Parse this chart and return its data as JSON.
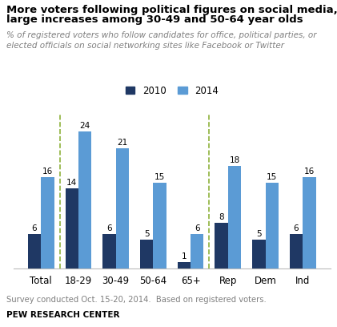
{
  "title_line1": "More voters following political figures on social media,",
  "title_line2": "large increases among 30-49 and 50-64 year olds",
  "subtitle": "% of registered voters who follow candidates for office, political parties, or\nelected officials on social networking sites like Facebook or Twitter",
  "categories": [
    "Total",
    "18-29",
    "30-49",
    "50-64",
    "65+",
    "Rep",
    "Dem",
    "Ind"
  ],
  "values_2010": [
    6,
    14,
    6,
    5,
    1,
    8,
    5,
    6
  ],
  "values_2014": [
    16,
    24,
    21,
    15,
    6,
    18,
    15,
    16
  ],
  "color_2010": "#1F3864",
  "color_2014": "#5B9BD5",
  "footer": "Survey conducted Oct. 15-20, 2014.  Based on registered voters.",
  "source": "PEW RESEARCH CENTER",
  "ylim": [
    0,
    27
  ],
  "bar_width": 0.35,
  "background_color": "#FFFFFF",
  "legend_labels": [
    "2010",
    "2014"
  ],
  "dashed_color": "#8DB13B",
  "subtitle_color": "#7F7F7F",
  "footer_color": "#7F7F7F"
}
